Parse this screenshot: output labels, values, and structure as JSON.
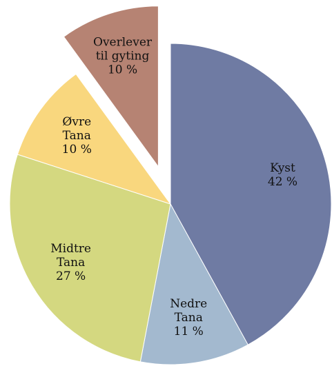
{
  "chart_data": {
    "type": "pie",
    "categories": [
      [
        "Kyst"
      ],
      [
        "Nedre",
        "Tana"
      ],
      [
        "Midtre",
        "Tana"
      ],
      [
        "Øvre",
        "Tana"
      ],
      [
        "Overlever",
        "til gyting"
      ]
    ],
    "values": [
      42,
      11,
      27,
      10,
      10
    ],
    "value_labels": [
      "42 %",
      "11 %",
      "27 %",
      "10 %",
      "10 %"
    ],
    "colors": [
      "#6f7ba3",
      "#a3b9cf",
      "#d4d880",
      "#f9d77e",
      "#b68373"
    ],
    "explode": [
      false,
      false,
      false,
      false,
      true
    ]
  }
}
